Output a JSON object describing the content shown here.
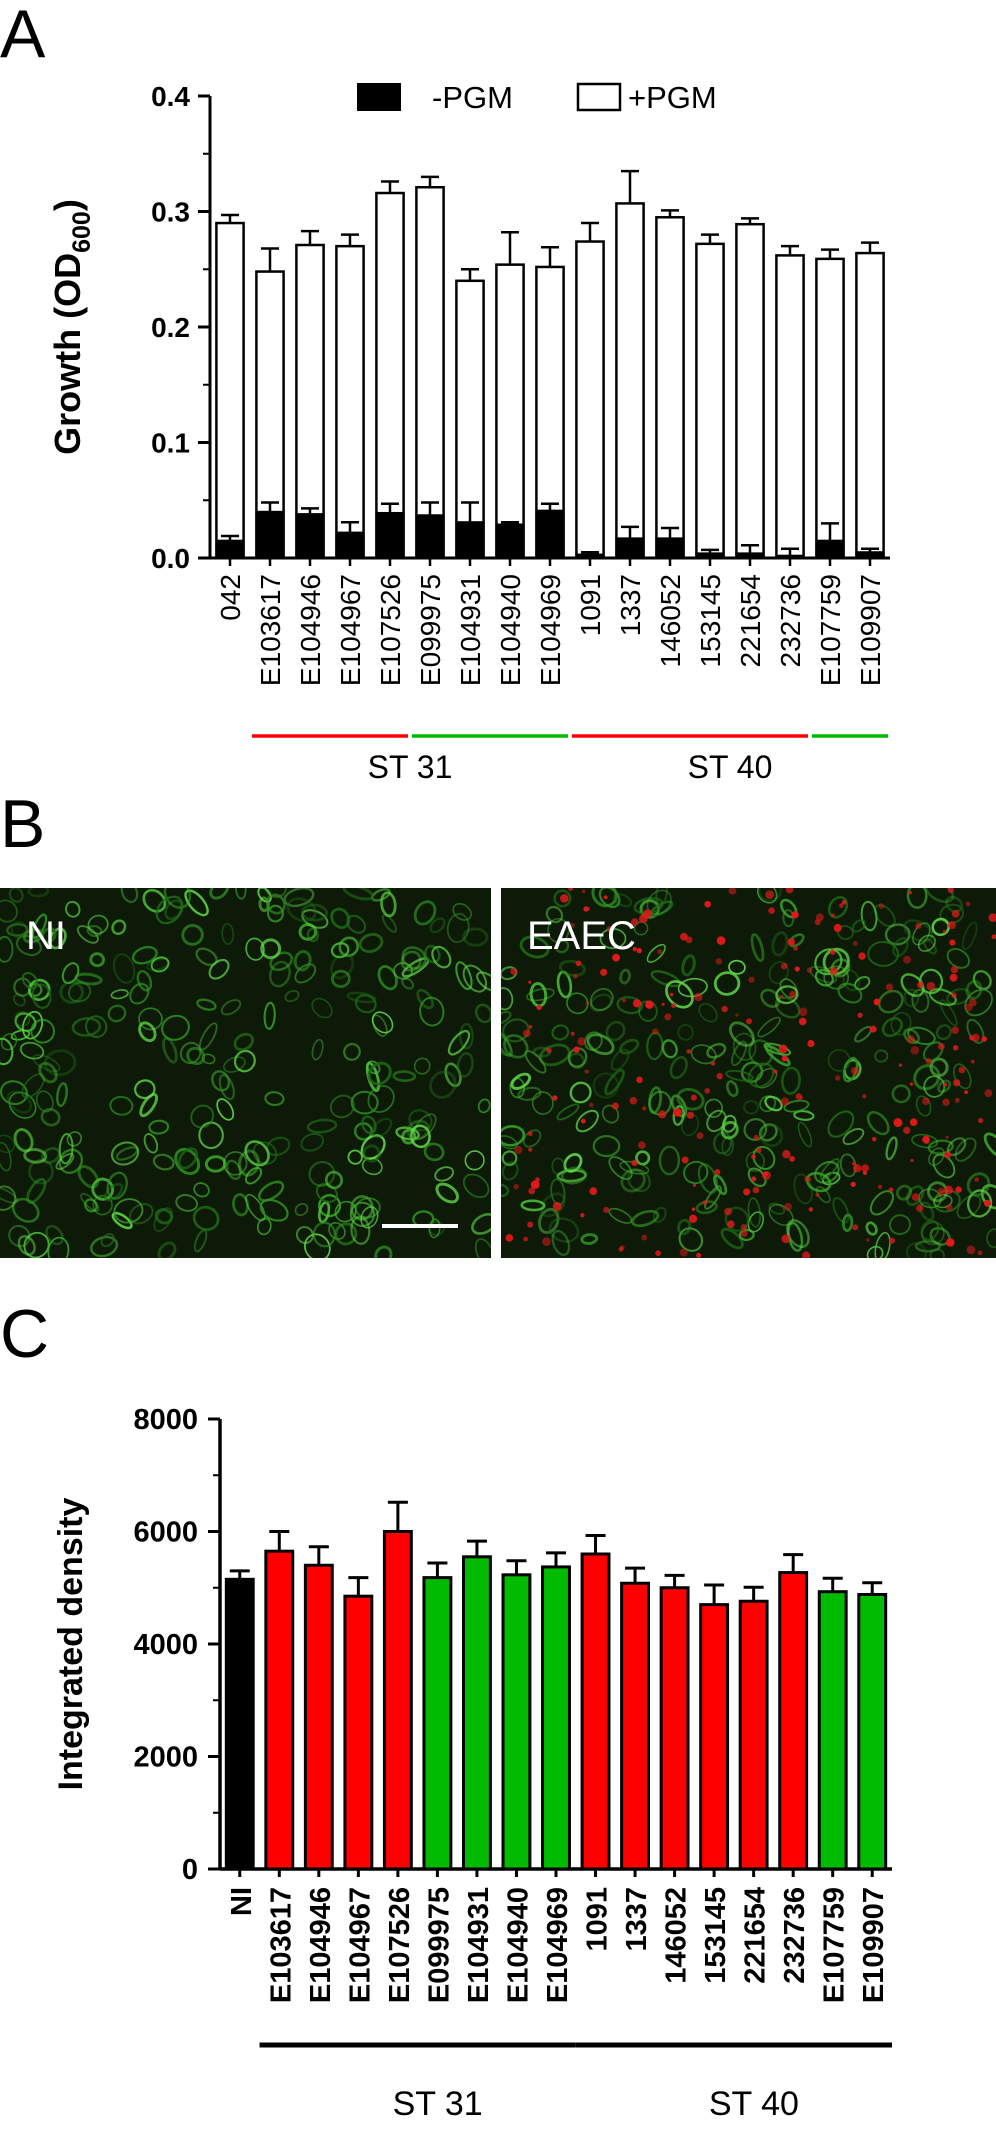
{
  "panels": {
    "a_letter": "A",
    "b_letter": "B",
    "c_letter": "C"
  },
  "microscopy": {
    "left_label": "NI",
    "right_label": "EAEC"
  },
  "colors": {
    "red": "#ff0000",
    "green": "#00bb00",
    "black": "#000000"
  },
  "chart_data": [
    {
      "type": "bar",
      "stacked": true,
      "categories": [
        "042",
        "E103617",
        "E104946",
        "E104967",
        "E107526",
        "E099975",
        "E104931",
        "E104940",
        "E104969",
        "1091",
        "1337",
        "146052",
        "153145",
        "221654",
        "232736",
        "E107759",
        "E109907"
      ],
      "series": [
        {
          "name": "-PGM",
          "color": "#000000",
          "values": [
            0.015,
            0.04,
            0.038,
            0.022,
            0.039,
            0.037,
            0.031,
            0.029,
            0.041,
            0.003,
            0.017,
            0.017,
            0.004,
            0.004,
            0.002,
            0.015,
            0.005
          ],
          "errors": [
            0.004,
            0.008,
            0.005,
            0.009,
            0.008,
            0.011,
            0.017,
            0.002,
            0.006,
            0.002,
            0.01,
            0.009,
            0.003,
            0.007,
            0.006,
            0.015,
            0.003
          ]
        },
        {
          "name": "+PGM",
          "color": "#ffffff",
          "values": [
            0.29,
            0.248,
            0.271,
            0.27,
            0.316,
            0.321,
            0.24,
            0.254,
            0.252,
            0.274,
            0.307,
            0.295,
            0.272,
            0.289,
            0.262,
            0.259,
            0.264
          ],
          "errors": [
            0.007,
            0.02,
            0.012,
            0.01,
            0.01,
            0.009,
            0.01,
            0.028,
            0.017,
            0.016,
            0.028,
            0.006,
            0.008,
            0.005,
            0.008,
            0.008,
            0.009
          ]
        }
      ],
      "ylabel_main": "Growth (OD",
      "ylabel_sub": "600",
      "ylabel_close": ")",
      "ylim": [
        0,
        0.4
      ],
      "yticks": [
        "0.0",
        "0.1",
        "0.2",
        "0.3",
        "0.4"
      ],
      "groups": [
        {
          "label": "ST 31",
          "segments": [
            {
              "from": 1,
              "to": 4,
              "color": "#ff0000"
            },
            {
              "from": 5,
              "to": 8,
              "color": "#00bb00"
            }
          ]
        },
        {
          "label": "ST 40",
          "segments": [
            {
              "from": 9,
              "to": 14,
              "color": "#ff0000"
            },
            {
              "from": 15,
              "to": 16,
              "color": "#00bb00"
            }
          ]
        }
      ],
      "legend": "top"
    },
    {
      "type": "bar",
      "categories": [
        "NI",
        "E103617",
        "E104946",
        "E104967",
        "E107526",
        "E099975",
        "E104931",
        "E104940",
        "E104969",
        "1091",
        "1337",
        "146052",
        "153145",
        "221654",
        "232736",
        "E107759",
        "E109907"
      ],
      "values": [
        5150,
        5650,
        5400,
        4850,
        6000,
        5180,
        5550,
        5230,
        5370,
        5600,
        5080,
        5000,
        4700,
        4760,
        5270,
        4930,
        4880
      ],
      "errors": [
        150,
        350,
        330,
        330,
        520,
        260,
        280,
        250,
        250,
        330,
        270,
        220,
        350,
        250,
        320,
        240,
        210
      ],
      "colors": [
        "#000000",
        "#ff0000",
        "#ff0000",
        "#ff0000",
        "#ff0000",
        "#00bb00",
        "#00bb00",
        "#00bb00",
        "#00bb00",
        "#ff0000",
        "#ff0000",
        "#ff0000",
        "#ff0000",
        "#ff0000",
        "#ff0000",
        "#00bb00",
        "#00bb00"
      ],
      "ylabel": "Integrated density",
      "ylim": [
        0,
        8000
      ],
      "yticks": [
        "0",
        "2000",
        "4000",
        "6000",
        "8000"
      ],
      "groups": [
        {
          "label": "ST 31",
          "segments": [
            {
              "from": 1,
              "to": 8,
              "color": "#000000"
            }
          ]
        },
        {
          "label": "ST 40",
          "segments": [
            {
              "from": 9,
              "to": 16,
              "color": "#000000"
            }
          ]
        }
      ]
    }
  ]
}
